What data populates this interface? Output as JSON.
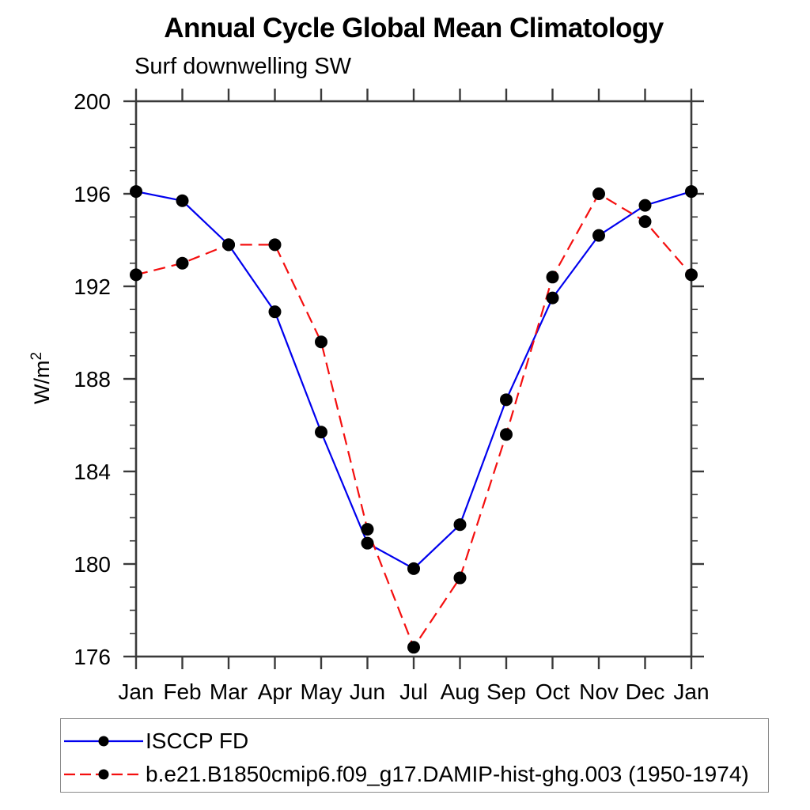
{
  "chart_data": {
    "type": "line",
    "title": "Annual Cycle Global Mean Climatology",
    "subtitle": "Surf downwelling SW",
    "ylabel_base": "W/m",
    "ylabel_superscript": "2",
    "x_categories": [
      "Jan",
      "Feb",
      "Mar",
      "Apr",
      "May",
      "Jun",
      "Jul",
      "Aug",
      "Sep",
      "Oct",
      "Nov",
      "Dec",
      "Jan"
    ],
    "ylim": [
      176,
      200
    ],
    "ytick_major_step": 4,
    "ytick_minor_step": 1,
    "ytick_labels": [
      "176",
      "180",
      "184",
      "188",
      "192",
      "196",
      "200"
    ],
    "grid": "off",
    "legend_position": "bottom-left-box",
    "axis_color": "#3a3a3a",
    "marker": "filled-circle",
    "marker_color": "#000000",
    "series": [
      {
        "name": "ISCCP FD",
        "line_color": "#0000ee",
        "line_style": "solid",
        "values": [
          196.1,
          195.7,
          193.8,
          190.9,
          185.7,
          180.9,
          179.8,
          181.7,
          187.1,
          191.5,
          194.2,
          195.5,
          196.1
        ]
      },
      {
        "name": "b.e21.B1850cmip6.f09_g17.DAMIP-hist-ghg.003 (1950-1974)",
        "line_color": "#f40f0f",
        "line_style": "dashed",
        "values": [
          192.5,
          193.0,
          193.8,
          193.8,
          189.6,
          181.5,
          176.4,
          179.4,
          185.6,
          192.4,
          196.0,
          194.8,
          192.5
        ]
      }
    ]
  }
}
